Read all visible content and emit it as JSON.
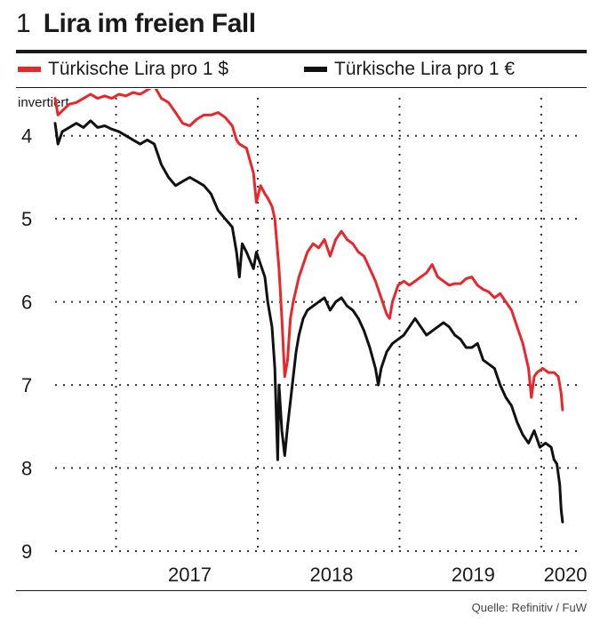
{
  "header": {
    "number": "1",
    "title": "Lira im freien Fall"
  },
  "legend": [
    {
      "label": "Türkische Lira pro 1 $",
      "color": "#e8262b"
    },
    {
      "label": "Türkische Lira pro 1 €",
      "color": "#111111"
    }
  ],
  "source": "Quelle: Refinitiv / FuW",
  "chart_data": {
    "type": "line",
    "title": "Lira im freien Fall",
    "ylabel": "invertiert",
    "y_inverted": true,
    "ylim": [
      9,
      3.5
    ],
    "y_ticks": [
      4,
      5,
      6,
      7,
      8,
      9
    ],
    "x_tick_labels": [
      "2017",
      "2018",
      "2019",
      "2020"
    ],
    "xlim": [
      2016.5,
      2020.2
    ],
    "grid": "dotted",
    "legend_position": "top",
    "series": [
      {
        "name": "Türkische Lira pro 1 $",
        "color": "#e8262b",
        "points": [
          [
            2016.5,
            3.55
          ],
          [
            2016.52,
            3.75
          ],
          [
            2016.55,
            3.7
          ],
          [
            2016.6,
            3.62
          ],
          [
            2016.65,
            3.6
          ],
          [
            2016.7,
            3.55
          ],
          [
            2016.75,
            3.5
          ],
          [
            2016.8,
            3.55
          ],
          [
            2016.85,
            3.52
          ],
          [
            2016.9,
            3.55
          ],
          [
            2016.95,
            3.5
          ],
          [
            2017.0,
            3.52
          ],
          [
            2017.05,
            3.48
          ],
          [
            2017.1,
            3.5
          ],
          [
            2017.15,
            3.45
          ],
          [
            2017.2,
            3.4
          ],
          [
            2017.25,
            3.55
          ],
          [
            2017.3,
            3.6
          ],
          [
            2017.35,
            3.72
          ],
          [
            2017.4,
            3.85
          ],
          [
            2017.45,
            3.88
          ],
          [
            2017.5,
            3.8
          ],
          [
            2017.55,
            3.75
          ],
          [
            2017.6,
            3.75
          ],
          [
            2017.65,
            3.72
          ],
          [
            2017.7,
            3.78
          ],
          [
            2017.75,
            3.88
          ],
          [
            2017.78,
            4.05
          ],
          [
            2017.8,
            4.1
          ],
          [
            2017.85,
            4.15
          ],
          [
            2017.9,
            4.45
          ],
          [
            2017.92,
            4.8
          ],
          [
            2017.95,
            4.6
          ],
          [
            2017.98,
            4.7
          ],
          [
            2018.0,
            4.75
          ],
          [
            2018.03,
            4.85
          ],
          [
            2018.05,
            5.0
          ],
          [
            2018.08,
            5.6
          ],
          [
            2018.1,
            6.2
          ],
          [
            2018.12,
            6.9
          ],
          [
            2018.14,
            6.7
          ],
          [
            2018.16,
            6.2
          ],
          [
            2018.18,
            6.0
          ],
          [
            2018.2,
            5.85
          ],
          [
            2018.22,
            5.7
          ],
          [
            2018.25,
            5.55
          ],
          [
            2018.28,
            5.4
          ],
          [
            2018.32,
            5.3
          ],
          [
            2018.36,
            5.35
          ],
          [
            2018.4,
            5.25
          ],
          [
            2018.44,
            5.45
          ],
          [
            2018.48,
            5.25
          ],
          [
            2018.52,
            5.15
          ],
          [
            2018.56,
            5.25
          ],
          [
            2018.6,
            5.3
          ],
          [
            2018.64,
            5.4
          ],
          [
            2018.68,
            5.45
          ],
          [
            2018.72,
            5.6
          ],
          [
            2018.76,
            5.75
          ],
          [
            2018.8,
            5.95
          ],
          [
            2018.84,
            6.15
          ],
          [
            2018.86,
            6.2
          ],
          [
            2018.88,
            6.0
          ],
          [
            2018.92,
            5.8
          ],
          [
            2018.96,
            5.75
          ],
          [
            2019.0,
            5.8
          ],
          [
            2019.04,
            5.75
          ],
          [
            2019.08,
            5.7
          ],
          [
            2019.12,
            5.65
          ],
          [
            2019.16,
            5.55
          ],
          [
            2019.2,
            5.7
          ],
          [
            2019.24,
            5.75
          ],
          [
            2019.28,
            5.8
          ],
          [
            2019.32,
            5.78
          ],
          [
            2019.36,
            5.78
          ],
          [
            2019.4,
            5.72
          ],
          [
            2019.44,
            5.7
          ],
          [
            2019.48,
            5.8
          ],
          [
            2019.52,
            5.85
          ],
          [
            2019.56,
            5.88
          ],
          [
            2019.6,
            5.95
          ],
          [
            2019.64,
            5.9
          ],
          [
            2019.68,
            6.0
          ],
          [
            2019.72,
            6.1
          ],
          [
            2019.76,
            6.3
          ],
          [
            2019.8,
            6.5
          ],
          [
            2019.84,
            6.8
          ],
          [
            2019.86,
            7.15
          ],
          [
            2019.88,
            6.9
          ],
          [
            2019.9,
            6.85
          ],
          [
            2019.94,
            6.8
          ],
          [
            2019.98,
            6.85
          ],
          [
            2020.02,
            6.85
          ],
          [
            2020.05,
            6.9
          ],
          [
            2020.07,
            7.1
          ],
          [
            2020.08,
            7.3
          ]
        ]
      },
      {
        "name": "Türkische Lira pro 1 €",
        "color": "#111111",
        "points": [
          [
            2016.5,
            3.85
          ],
          [
            2016.52,
            4.1
          ],
          [
            2016.55,
            3.95
          ],
          [
            2016.6,
            3.9
          ],
          [
            2016.65,
            3.85
          ],
          [
            2016.7,
            3.9
          ],
          [
            2016.75,
            3.82
          ],
          [
            2016.8,
            3.9
          ],
          [
            2016.85,
            3.88
          ],
          [
            2016.9,
            3.92
          ],
          [
            2016.95,
            3.95
          ],
          [
            2017.0,
            4.0
          ],
          [
            2017.05,
            4.05
          ],
          [
            2017.1,
            4.1
          ],
          [
            2017.15,
            4.05
          ],
          [
            2017.2,
            4.1
          ],
          [
            2017.25,
            4.35
          ],
          [
            2017.3,
            4.5
          ],
          [
            2017.35,
            4.6
          ],
          [
            2017.4,
            4.55
          ],
          [
            2017.45,
            4.5
          ],
          [
            2017.5,
            4.55
          ],
          [
            2017.55,
            4.6
          ],
          [
            2017.6,
            4.7
          ],
          [
            2017.65,
            4.9
          ],
          [
            2017.7,
            5.0
          ],
          [
            2017.75,
            5.1
          ],
          [
            2017.78,
            5.4
          ],
          [
            2017.8,
            5.7
          ],
          [
            2017.82,
            5.3
          ],
          [
            2017.85,
            5.4
          ],
          [
            2017.9,
            5.6
          ],
          [
            2017.92,
            5.4
          ],
          [
            2017.95,
            5.55
          ],
          [
            2017.98,
            5.7
          ],
          [
            2018.0,
            6.0
          ],
          [
            2018.03,
            6.3
          ],
          [
            2018.05,
            6.8
          ],
          [
            2018.07,
            7.9
          ],
          [
            2018.08,
            7.0
          ],
          [
            2018.1,
            7.55
          ],
          [
            2018.12,
            7.85
          ],
          [
            2018.14,
            7.5
          ],
          [
            2018.16,
            7.2
          ],
          [
            2018.18,
            6.9
          ],
          [
            2018.2,
            6.6
          ],
          [
            2018.22,
            6.4
          ],
          [
            2018.25,
            6.2
          ],
          [
            2018.28,
            6.1
          ],
          [
            2018.32,
            6.05
          ],
          [
            2018.36,
            6.0
          ],
          [
            2018.4,
            5.95
          ],
          [
            2018.44,
            6.1
          ],
          [
            2018.48,
            6.0
          ],
          [
            2018.52,
            5.95
          ],
          [
            2018.56,
            6.05
          ],
          [
            2018.6,
            6.1
          ],
          [
            2018.64,
            6.2
          ],
          [
            2018.68,
            6.35
          ],
          [
            2018.72,
            6.55
          ],
          [
            2018.76,
            6.8
          ],
          [
            2018.78,
            7.0
          ],
          [
            2018.8,
            6.8
          ],
          [
            2018.84,
            6.6
          ],
          [
            2018.88,
            6.5
          ],
          [
            2018.92,
            6.45
          ],
          [
            2018.96,
            6.4
          ],
          [
            2019.0,
            6.3
          ],
          [
            2019.04,
            6.2
          ],
          [
            2019.08,
            6.3
          ],
          [
            2019.12,
            6.4
          ],
          [
            2019.16,
            6.35
          ],
          [
            2019.2,
            6.3
          ],
          [
            2019.24,
            6.25
          ],
          [
            2019.28,
            6.3
          ],
          [
            2019.32,
            6.4
          ],
          [
            2019.36,
            6.45
          ],
          [
            2019.4,
            6.55
          ],
          [
            2019.44,
            6.55
          ],
          [
            2019.48,
            6.5
          ],
          [
            2019.52,
            6.7
          ],
          [
            2019.56,
            6.75
          ],
          [
            2019.6,
            6.8
          ],
          [
            2019.64,
            7.0
          ],
          [
            2019.68,
            7.15
          ],
          [
            2019.72,
            7.25
          ],
          [
            2019.76,
            7.45
          ],
          [
            2019.8,
            7.6
          ],
          [
            2019.84,
            7.7
          ],
          [
            2019.88,
            7.55
          ],
          [
            2019.92,
            7.75
          ],
          [
            2019.96,
            7.7
          ],
          [
            2020.0,
            7.75
          ],
          [
            2020.02,
            7.9
          ],
          [
            2020.04,
            7.95
          ],
          [
            2020.06,
            8.2
          ],
          [
            2020.07,
            8.5
          ],
          [
            2020.08,
            8.65
          ]
        ]
      }
    ]
  }
}
